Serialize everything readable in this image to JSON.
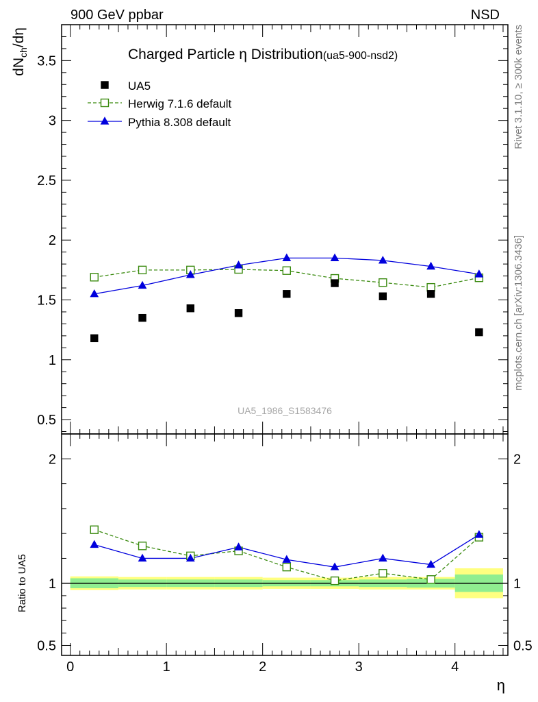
{
  "header": {
    "left": "900 GeV ppbar",
    "right": "NSD"
  },
  "side_labels": {
    "rivet": "Rivet 3.1.10, ≥ 300k events",
    "mcplots": "mcplots.cern.ch [arXiv:1306.3436]"
  },
  "chart_data": [
    {
      "type": "scatter",
      "title": "Charged Particle η Distribution",
      "title_tag": "(ua5-900-nsd2)",
      "watermark": "UA5_1986_S1583476",
      "ylabel": "dN_ch/dη",
      "ylim": [
        0.38,
        3.8
      ],
      "yticks": [
        0.5,
        1,
        1.5,
        2,
        2.5,
        3,
        3.5
      ],
      "ytick_labels": [
        "0.5",
        "1",
        "1.5",
        "2",
        "2.5",
        "3",
        "3.5"
      ],
      "xlim": [
        -0.09,
        4.55
      ],
      "legend_position": "top-left",
      "x": [
        0.25,
        0.75,
        1.25,
        1.75,
        2.25,
        2.75,
        3.25,
        3.75,
        4.25
      ],
      "series": [
        {
          "name": "UA5",
          "style": "data",
          "color": "#000000",
          "values": [
            1.18,
            1.35,
            1.43,
            1.39,
            1.55,
            1.64,
            1.53,
            1.55,
            1.23
          ]
        },
        {
          "name": "Herwig 7.1.6 default",
          "style": "open-square-dashed",
          "color": "#3a8a0f",
          "values": [
            1.69,
            1.75,
            1.75,
            1.755,
            1.745,
            1.68,
            1.645,
            1.605,
            1.685
          ]
        },
        {
          "name": "Pythia 8.308 default",
          "style": "triangle-solid",
          "color": "#0000dd",
          "values": [
            1.55,
            1.62,
            1.71,
            1.79,
            1.85,
            1.85,
            1.83,
            1.78,
            1.715
          ]
        }
      ]
    },
    {
      "type": "line",
      "ylabel": "Ratio to UA5",
      "xlabel": "η",
      "ylim": [
        0.42,
        2.2
      ],
      "yticks": [
        0.5,
        1,
        2
      ],
      "ytick_labels": [
        "0.5",
        "1",
        "2"
      ],
      "xlim": [
        -0.09,
        4.55
      ],
      "xticks": [
        0,
        1,
        2,
        3,
        4
      ],
      "xtick_labels": [
        "0",
        "1",
        "2",
        "3",
        "4"
      ],
      "x": [
        0.25,
        0.75,
        1.25,
        1.75,
        2.25,
        2.75,
        3.25,
        3.75,
        4.25
      ],
      "uncertainty_bands": {
        "bins": [
          [
            0,
            0.5
          ],
          [
            0.5,
            1
          ],
          [
            1,
            1.5
          ],
          [
            1.5,
            2
          ],
          [
            2,
            2.5
          ],
          [
            2.5,
            3
          ],
          [
            3,
            3.5
          ],
          [
            3.5,
            4
          ],
          [
            4,
            4.5
          ]
        ],
        "stat": [
          0.04,
          0.03,
          0.03,
          0.03,
          0.025,
          0.025,
          0.03,
          0.035,
          0.07
        ],
        "total": [
          0.055,
          0.05,
          0.05,
          0.05,
          0.045,
          0.045,
          0.05,
          0.05,
          0.12
        ],
        "stat_color": "#90ee90",
        "total_color": "#ffff80"
      },
      "series": [
        {
          "name": "Herwig 7.1.6 default",
          "color": "#3a8a0f",
          "values": [
            1.43,
            1.3,
            1.22,
            1.26,
            1.13,
            1.02,
            1.08,
            1.03,
            1.37
          ]
        },
        {
          "name": "Pythia 8.308 default",
          "color": "#0000dd",
          "values": [
            1.31,
            1.2,
            1.2,
            1.29,
            1.19,
            1.13,
            1.2,
            1.15,
            1.39
          ]
        }
      ]
    }
  ]
}
